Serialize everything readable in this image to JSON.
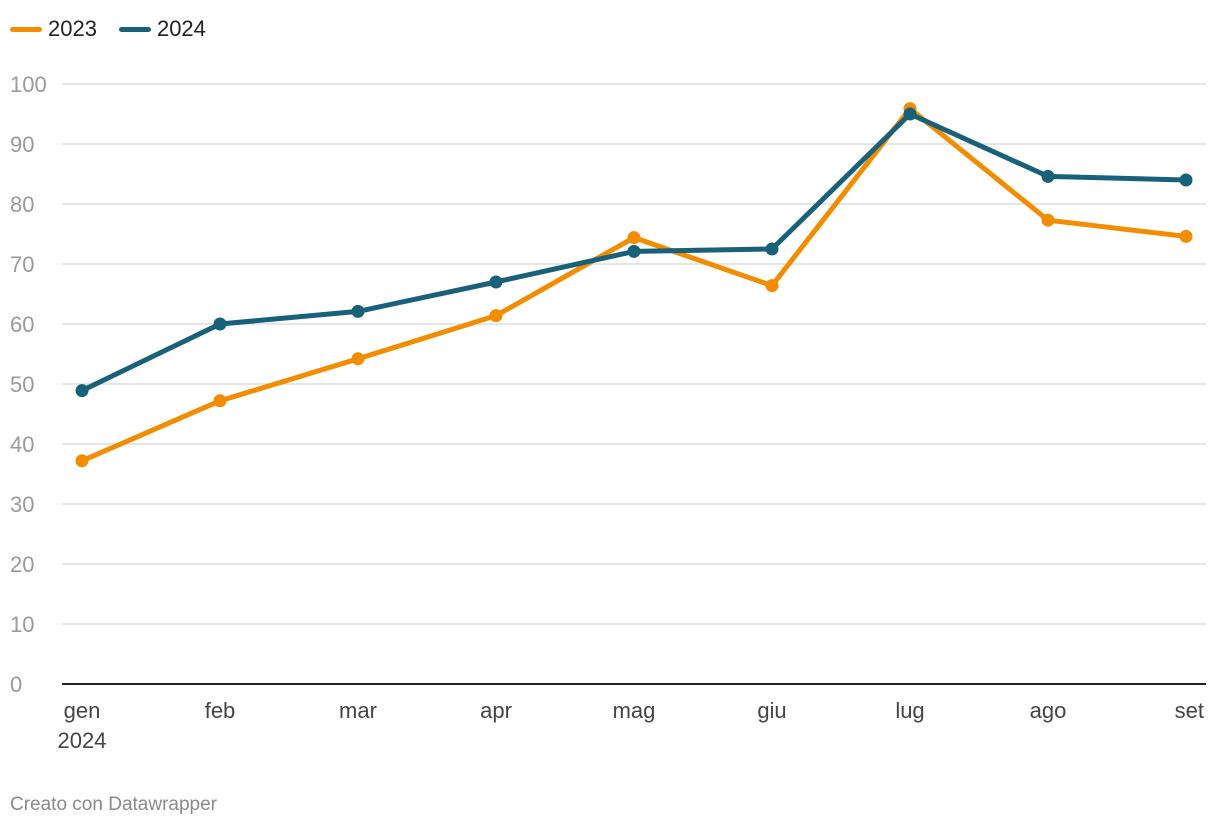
{
  "chart_data": {
    "type": "line",
    "categories": [
      "gen",
      "feb",
      "mar",
      "apr",
      "mag",
      "giu",
      "lug",
      "ago",
      "set"
    ],
    "x_sublabel": "2024",
    "ylim": [
      0,
      100
    ],
    "yticks": [
      0,
      10,
      20,
      30,
      40,
      50,
      60,
      70,
      80,
      90,
      100
    ],
    "grid": true,
    "legend_position": "top-left",
    "series": [
      {
        "name": "2023",
        "color": "#f28c00",
        "values": [
          37.2,
          47.2,
          54.2,
          61.4,
          74.4,
          66.4,
          95.9,
          77.3,
          74.6
        ]
      },
      {
        "name": "2024",
        "color": "#19607a",
        "values": [
          48.9,
          60.0,
          62.1,
          67.0,
          72.1,
          72.5,
          95.0,
          84.6,
          84.0
        ]
      }
    ]
  },
  "footer": {
    "credit": "Creato con Datawrapper"
  }
}
